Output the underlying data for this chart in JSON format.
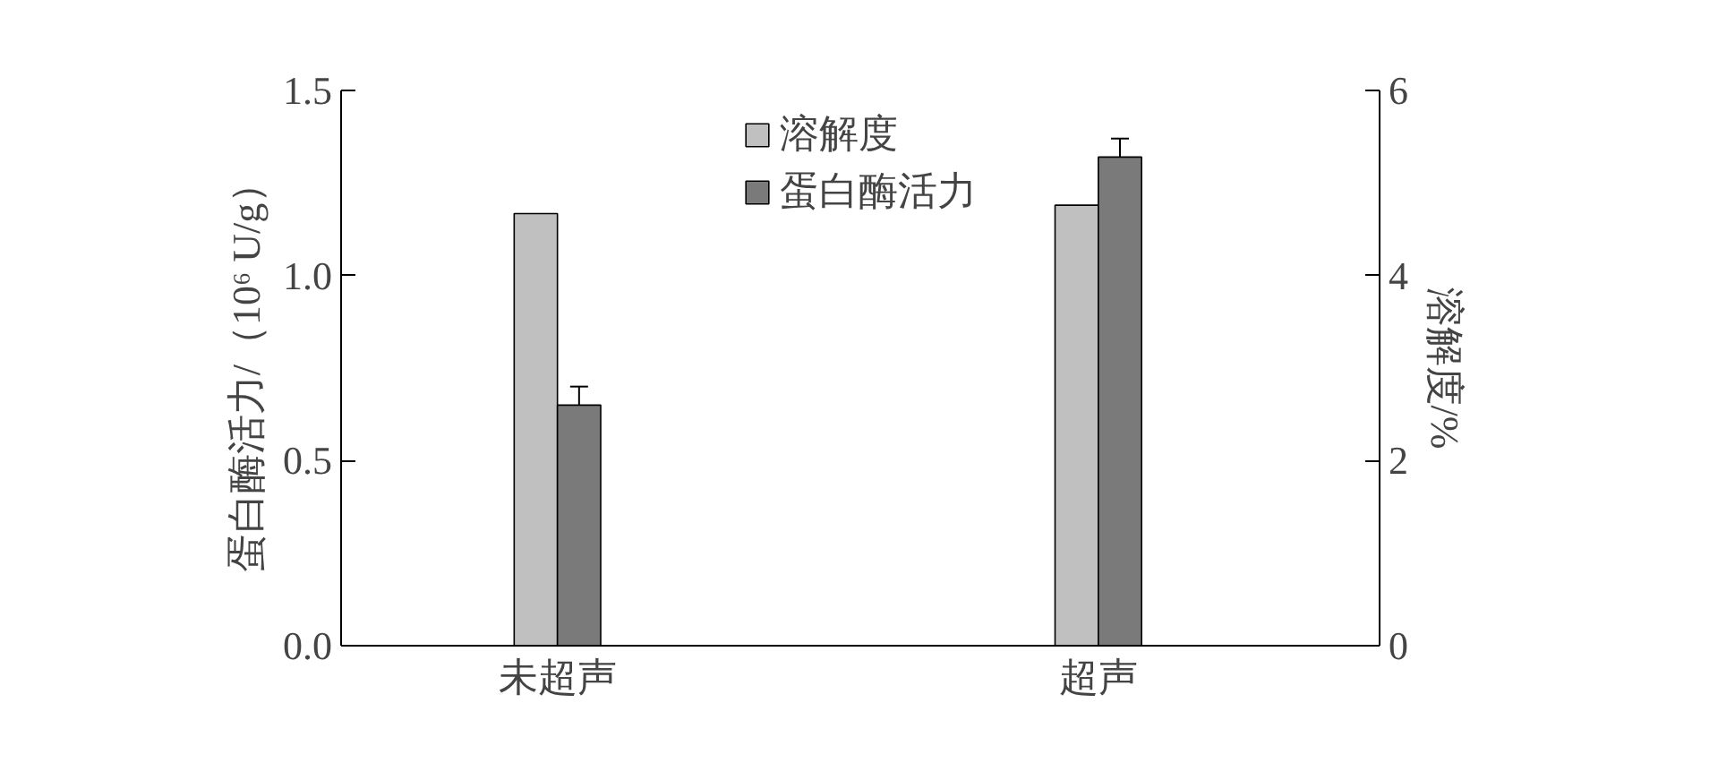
{
  "chart_data": {
    "type": "bar",
    "categories": [
      "未超声",
      "超声"
    ],
    "ylabel": "蛋白酶活力/（10⁶ U/g）",
    "y2label": "溶解度/%",
    "ylim": [
      0,
      1.5
    ],
    "yticks": [
      {
        "value": 0,
        "label": "0.0"
      },
      {
        "value": 0.5,
        "label": "0.5"
      },
      {
        "value": 1,
        "label": "1.0"
      },
      {
        "value": 1.5,
        "label": "1.5"
      }
    ],
    "y2lim": [
      0,
      6
    ],
    "y2ticks": [
      0,
      2,
      4,
      6
    ],
    "series": [
      {
        "name": "溶解度",
        "color": "#c0c0c0",
        "axis": "y2",
        "values": [
          4.67,
          4.76
        ]
      },
      {
        "name": "蛋白酶活力",
        "color": "#7a7a7a",
        "axis": "y",
        "values": [
          0.65,
          1.32
        ],
        "errors": [
          0.05,
          0.05
        ]
      }
    ],
    "legend": "top",
    "grid": false
  }
}
